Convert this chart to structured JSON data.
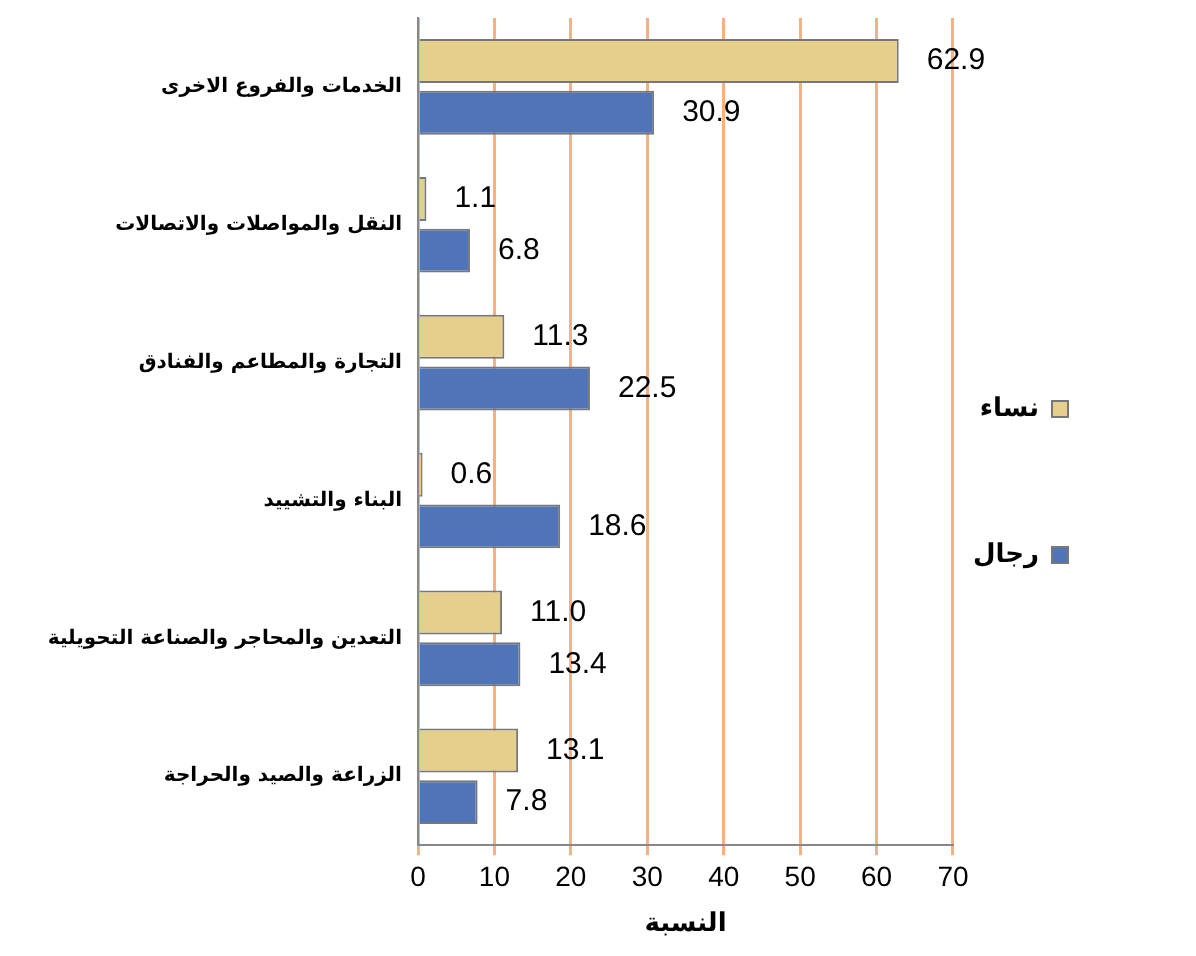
{
  "chart_data": {
    "type": "bar",
    "orientation": "horizontal",
    "xlabel": "النسبة",
    "categories": [
      "الخدمات والفروع الاخرى",
      "النقل والمواصلات والاتصالات",
      "التجارة والمطاعم والفنادق",
      "البناء والتشييد",
      "التعدين والمحاجر والصناعة التحويلية",
      "الزراعة والصيد والحراجة"
    ],
    "series": [
      {
        "name": "نساء",
        "color": "#e6cf8c",
        "values": [
          62.9,
          1.1,
          11.3,
          0.6,
          11.0,
          13.1
        ],
        "value_labels": [
          "62.9",
          "1.1",
          "11.3",
          "0.6",
          "11.0",
          "13.1"
        ]
      },
      {
        "name": "رجال",
        "color": "#4f74b8",
        "values": [
          30.9,
          6.8,
          22.5,
          18.6,
          13.4,
          7.8
        ],
        "value_labels": [
          "30.9",
          "6.8",
          "22.5",
          "18.6",
          "13.4",
          "7.8"
        ]
      }
    ],
    "xlim": [
      0,
      70
    ],
    "xticks": [
      0,
      10,
      20,
      30,
      40,
      50,
      60,
      70
    ],
    "grid": "x",
    "legend": "right"
  }
}
